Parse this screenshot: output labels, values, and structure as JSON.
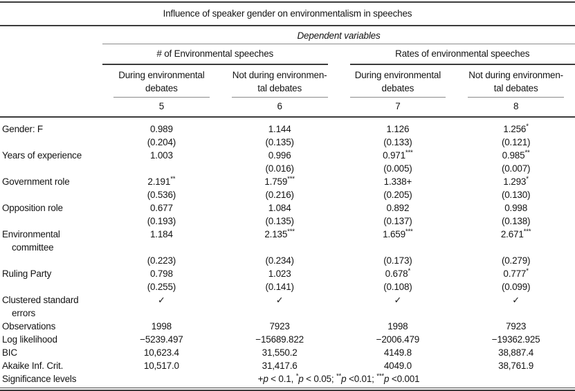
{
  "table": {
    "title": "Influence of speaker gender on environmentalism in speeches",
    "dependent_label": "Dependent variables",
    "groups": [
      {
        "label": "# of Environmental speeches"
      },
      {
        "label": "Rates of environmental speeches"
      }
    ],
    "columns": [
      {
        "header": "During environmental\ndebates",
        "number": "5"
      },
      {
        "header": "Not during environmen-\ntal debates",
        "number": "6"
      },
      {
        "header": "During environmental\ndebates",
        "number": "7"
      },
      {
        "header": "Not during environmen-\ntal debates",
        "number": "8"
      }
    ],
    "coef_rows": [
      {
        "label": "Gender: F",
        "values": [
          "0.989",
          "1.144",
          "1.126",
          "1.256*"
        ],
        "se": [
          "(0.204)",
          "(0.135)",
          "(0.133)",
          "(0.121)"
        ]
      },
      {
        "label": "Years of experience",
        "values": [
          "1.003",
          "0.996",
          "0.971***",
          "0.985**"
        ],
        "se": [
          "",
          "(0.016)",
          "(0.005)",
          "(0.007)"
        ]
      },
      {
        "label": "Government role",
        "values": [
          "2.191**",
          "1.759***",
          "1.338+",
          "1.293*"
        ],
        "se": [
          "(0.536)",
          "(0.216)",
          "(0.205)",
          "(0.130)"
        ]
      },
      {
        "label": "Opposition role",
        "values": [
          "0.677",
          "1.084",
          "0.892",
          "0.998"
        ],
        "se": [
          "(0.193)",
          "(0.135)",
          "(0.137)",
          "(0.138)"
        ]
      },
      {
        "label": "Environmental committee",
        "values": [
          "1.184",
          "2.135***",
          "1.659***",
          "2.671***"
        ],
        "se": [
          "(0.223)",
          "(0.234)",
          "(0.173)",
          "(0.279)"
        ]
      },
      {
        "label": "Ruling Party",
        "values": [
          "0.798",
          "1.023",
          "0.678*",
          "0.777*"
        ],
        "se": [
          "(0.255)",
          "(0.141)",
          "(0.108)",
          "(0.099)"
        ]
      }
    ],
    "stat_rows": [
      {
        "label": "Clustered standard errors",
        "values": [
          "✓",
          "✓",
          "✓",
          "✓"
        ]
      },
      {
        "label": "Observations",
        "values": [
          "1998",
          "7923",
          "1998",
          "7923"
        ]
      },
      {
        "label": "Log likelihood",
        "values": [
          "−5239.497",
          "−15689.822",
          "−2006.479",
          "−19362.925"
        ]
      },
      {
        "label": "BIC",
        "values": [
          "10,623.4",
          "31,550.2",
          "4149.8",
          "38,887.4"
        ]
      },
      {
        "label": "Akaike Inf. Crit.",
        "values": [
          "10,517.0",
          "31,417.6",
          "4049.0",
          "38,761.9"
        ]
      }
    ],
    "significance": {
      "label": "Significance levels",
      "note": "+p < 0.1, *p < 0.05; **p <0.01; ***p <0.001"
    }
  }
}
